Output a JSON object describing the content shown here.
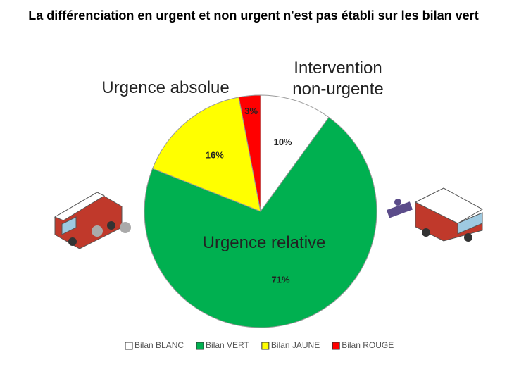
{
  "chart_data": {
    "type": "pie",
    "title": "La différenciation en urgent et non urgent n'est pas établi sur les bilan vert",
    "annotations": [
      "Intervention non-urgente",
      "Urgence absolue",
      "Urgence relative"
    ],
    "categories": [
      "Bilan BLANC",
      "Bilan VERT",
      "Bilan JAUNE",
      "Bilan ROUGE"
    ],
    "values": [
      10,
      71,
      16,
      3
    ],
    "value_labels": [
      "10%",
      "71%",
      "16%",
      "3%"
    ],
    "colors": [
      "#ffffff",
      "#00b050",
      "#ffff00",
      "#ff0000"
    ],
    "legend": "bottom"
  }
}
